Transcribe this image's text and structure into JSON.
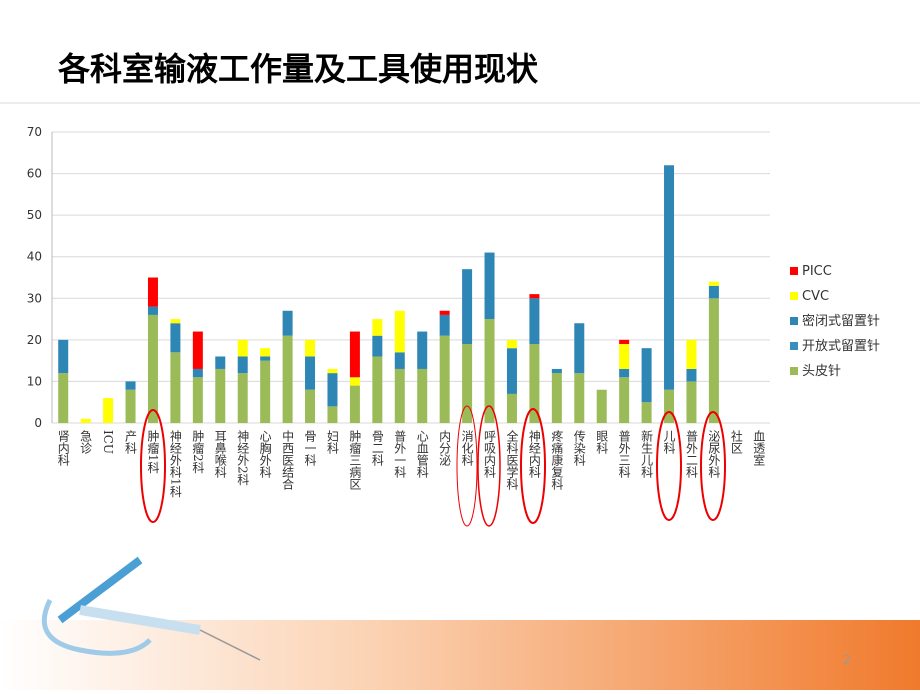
{
  "chart_data": {
    "type": "stacked_bar",
    "title": "各科室输液工作量及工具使用现状",
    "page_number": "2",
    "categories": [
      "肾内科",
      "急诊",
      "ICU",
      "产科",
      "肿瘤1科",
      "神经外科1科",
      "肿瘤2科",
      "耳鼻喉科",
      "神经外2科",
      "心胸外科",
      "中西医结合",
      "骨一科",
      "妇科",
      "肿瘤三病区",
      "骨二科",
      "普外一科",
      "心血管科",
      "内分泌",
      "消化科",
      "呼吸内科",
      "全科医学科",
      "神经内科",
      "疼痛康复科",
      "传染科",
      "眼科",
      "普外三科",
      "新生儿科",
      "儿科",
      "普外二科",
      "泌尿外科",
      "社区",
      "血透室"
    ],
    "series": [
      {
        "name": "头皮针",
        "color": "#9bbb59",
        "values": [
          12,
          0,
          0,
          8,
          26,
          17,
          11,
          13,
          12,
          15,
          21,
          8,
          4,
          9,
          16,
          13,
          13,
          21,
          19,
          25,
          7,
          19,
          12,
          12,
          8,
          11,
          5,
          8,
          10,
          30,
          0,
          0
        ]
      },
      {
        "name": "开放式留置针",
        "color": "#3a8fb8",
        "values": [
          0,
          0,
          0,
          0,
          0,
          0,
          0,
          0,
          0,
          0,
          0,
          0,
          0,
          0,
          0,
          0,
          0,
          0,
          0,
          0,
          0,
          0,
          0,
          0,
          0,
          0,
          0,
          0,
          0,
          0,
          0,
          0
        ]
      },
      {
        "name": "密闭式留置针",
        "color": "#2e86b5",
        "values": [
          8,
          0,
          0,
          2,
          2,
          7,
          2,
          3,
          4,
          1,
          6,
          8,
          8,
          0,
          5,
          4,
          9,
          5,
          18,
          16,
          11,
          11,
          1,
          12,
          0,
          2,
          13,
          54,
          3,
          3,
          0,
          0
        ]
      },
      {
        "name": "CVC",
        "color": "#ffff00",
        "values": [
          0,
          1,
          6,
          0,
          0,
          1,
          0,
          0,
          4,
          2,
          0,
          4,
          1,
          2,
          4,
          10,
          0,
          0,
          0,
          0,
          2,
          0,
          0,
          0,
          0,
          6,
          0,
          0,
          7,
          1,
          0,
          0
        ]
      },
      {
        "name": "PICC",
        "color": "#ff0000",
        "values": [
          0,
          0,
          0,
          0,
          7,
          0,
          9,
          0,
          0,
          0,
          0,
          0,
          0,
          11,
          0,
          0,
          0,
          1,
          0,
          0,
          0,
          1,
          0,
          0,
          0,
          1,
          0,
          0,
          0,
          0,
          0,
          0
        ]
      }
    ],
    "ylim": [
      0,
      70
    ],
    "yticks": [
      0,
      10,
      20,
      30,
      40,
      50,
      60,
      70
    ],
    "grid": true,
    "legend": "right"
  }
}
